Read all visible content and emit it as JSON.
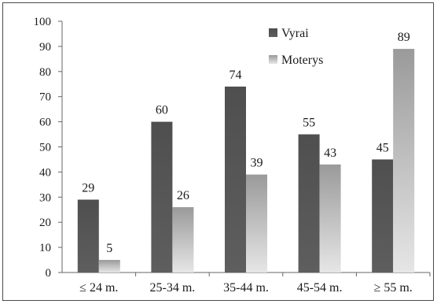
{
  "chart_data": {
    "type": "bar",
    "categories": [
      "≤ 24 m.",
      "25-34 m.",
      "35-44 m.",
      "45-54 m.",
      "≥ 55 m."
    ],
    "series": [
      {
        "name": "Vyrai",
        "values": [
          29,
          60,
          74,
          55,
          45
        ]
      },
      {
        "name": "Moterys",
        "values": [
          5,
          26,
          39,
          43,
          89
        ]
      }
    ],
    "ylim": [
      0,
      100
    ],
    "yticks": [
      "0",
      "10",
      "20",
      "30",
      "40",
      "50",
      "60",
      "70",
      "80",
      "90",
      "100"
    ],
    "data_labels": true,
    "grid": false,
    "legend_position": "top-right",
    "colors": {
      "Vyrai": "#555555",
      "Moterys": "#a6a6a6"
    }
  }
}
